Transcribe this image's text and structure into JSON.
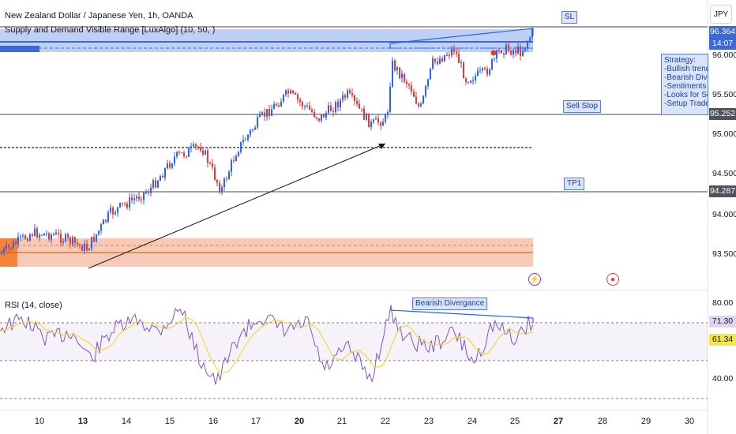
{
  "header": {
    "title": "New Zealand Dollar / Japanese Yen, 1h, OANDA",
    "indicator": "Supply and Demand Visible Range [LuxAlgo] (10, 50, )",
    "currency_button": "JPY"
  },
  "labels": {
    "sl": "SL",
    "sell_stop": "Sell Stop",
    "tp1": "TP1",
    "bearish_divergence": "Bearish Divergance"
  },
  "strategy": {
    "lines": [
      "Strategy:",
      "-Bullish trend abo",
      "-Bearish Divergan",
      "-Sentiments are b",
      "-Looks for Sell Se",
      "-Setup Trade plan"
    ]
  },
  "price_axis": {
    "ticks": [
      "96.000",
      "95.500",
      "95.000",
      "94.500",
      "94.000",
      "93.500"
    ],
    "current_price": "96.364",
    "countdown": "14:07",
    "sell_stop_price": "95.252",
    "tp1_price": "94.287"
  },
  "rsi": {
    "title": "RSI (14, close)",
    "ticks": [
      "80.00",
      "40.00"
    ],
    "value": "71.30",
    "ma_value": "61.34"
  },
  "time_axis": {
    "labels": [
      {
        "text": "10",
        "bold": false
      },
      {
        "text": "13",
        "bold": true
      },
      {
        "text": "14",
        "bold": false
      },
      {
        "text": "15",
        "bold": false
      },
      {
        "text": "16",
        "bold": false
      },
      {
        "text": "17",
        "bold": false
      },
      {
        "text": "20",
        "bold": true
      },
      {
        "text": "21",
        "bold": false
      },
      {
        "text": "22",
        "bold": false
      },
      {
        "text": "23",
        "bold": false
      },
      {
        "text": "24",
        "bold": false
      },
      {
        "text": "25",
        "bold": false
      },
      {
        "text": "27",
        "bold": true
      },
      {
        "text": "28",
        "bold": false
      },
      {
        "text": "29",
        "bold": false
      },
      {
        "text": "30",
        "bold": false
      }
    ]
  },
  "colors": {
    "up": "#2962ff",
    "down": "#e53935",
    "supply": "#4a78e0",
    "demand": "#f0a987",
    "rsi_line": "#7e57c2",
    "rsi_ma": "#f5d742"
  }
}
